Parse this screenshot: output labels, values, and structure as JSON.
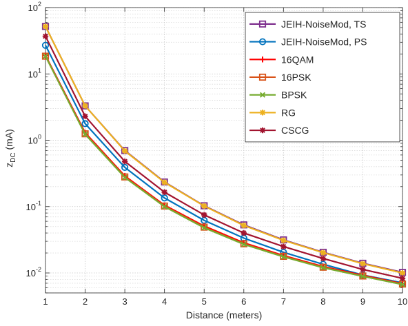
{
  "chart_data": {
    "type": "line",
    "xlabel": "Distance (meters)",
    "ylabel_main": "z",
    "ylabel_sub": "DC",
    "ylabel_unit": " (mA)",
    "x": [
      1,
      2,
      3,
      4,
      5,
      6,
      7,
      8,
      9,
      10
    ],
    "xlim": [
      1,
      10
    ],
    "ylim": [
      0.005,
      100
    ],
    "yscale": "log",
    "grid": true,
    "legend_position": "top-right",
    "x_ticks": [
      "1",
      "2",
      "3",
      "4",
      "5",
      "6",
      "7",
      "8",
      "9",
      "10"
    ],
    "y_ticks": [
      {
        "value": 0.01,
        "base": "10",
        "exp": "-2"
      },
      {
        "value": 0.1,
        "base": "10",
        "exp": "-1"
      },
      {
        "value": 1,
        "base": "10",
        "exp": "0"
      },
      {
        "value": 10,
        "base": "10",
        "exp": "1"
      },
      {
        "value": 100,
        "base": "10",
        "exp": "2"
      }
    ],
    "series": [
      {
        "name": "JEIH-NoiseMod, TS",
        "color": "#7e2f8e",
        "marker": "square",
        "values": [
          52,
          3.3,
          0.7,
          0.235,
          0.103,
          0.053,
          0.0315,
          0.0205,
          0.014,
          0.0102
        ]
      },
      {
        "name": "JEIH-NoiseMod, PS",
        "color": "#0072bd",
        "marker": "circle",
        "values": [
          27,
          1.78,
          0.39,
          0.135,
          0.062,
          0.0335,
          0.0205,
          0.0135,
          0.0093,
          0.0071
        ]
      },
      {
        "name": "16QAM",
        "color": "#ff0000",
        "marker": "plus",
        "values": [
          19,
          1.3,
          0.29,
          0.105,
          0.051,
          0.0285,
          0.0183,
          0.0125,
          0.0092,
          0.0069
        ]
      },
      {
        "name": "16PSK",
        "color": "#d95319",
        "marker": "square",
        "values": [
          18.5,
          1.25,
          0.28,
          0.102,
          0.049,
          0.0275,
          0.0178,
          0.0122,
          0.009,
          0.0068
        ]
      },
      {
        "name": "BPSK",
        "color": "#77ac30",
        "marker": "x",
        "values": [
          18.5,
          1.23,
          0.275,
          0.1,
          0.048,
          0.027,
          0.0175,
          0.012,
          0.0089,
          0.0067
        ]
      },
      {
        "name": "RG",
        "color": "#edb120",
        "marker": "asterisk",
        "values": [
          52,
          3.3,
          0.69,
          0.232,
          0.102,
          0.052,
          0.031,
          0.0202,
          0.0138,
          0.01
        ]
      },
      {
        "name": "CSCG",
        "color": "#a2142f",
        "marker": "asterisk",
        "values": [
          37,
          2.3,
          0.48,
          0.165,
          0.075,
          0.04,
          0.025,
          0.0165,
          0.0113,
          0.0083
        ]
      }
    ]
  }
}
